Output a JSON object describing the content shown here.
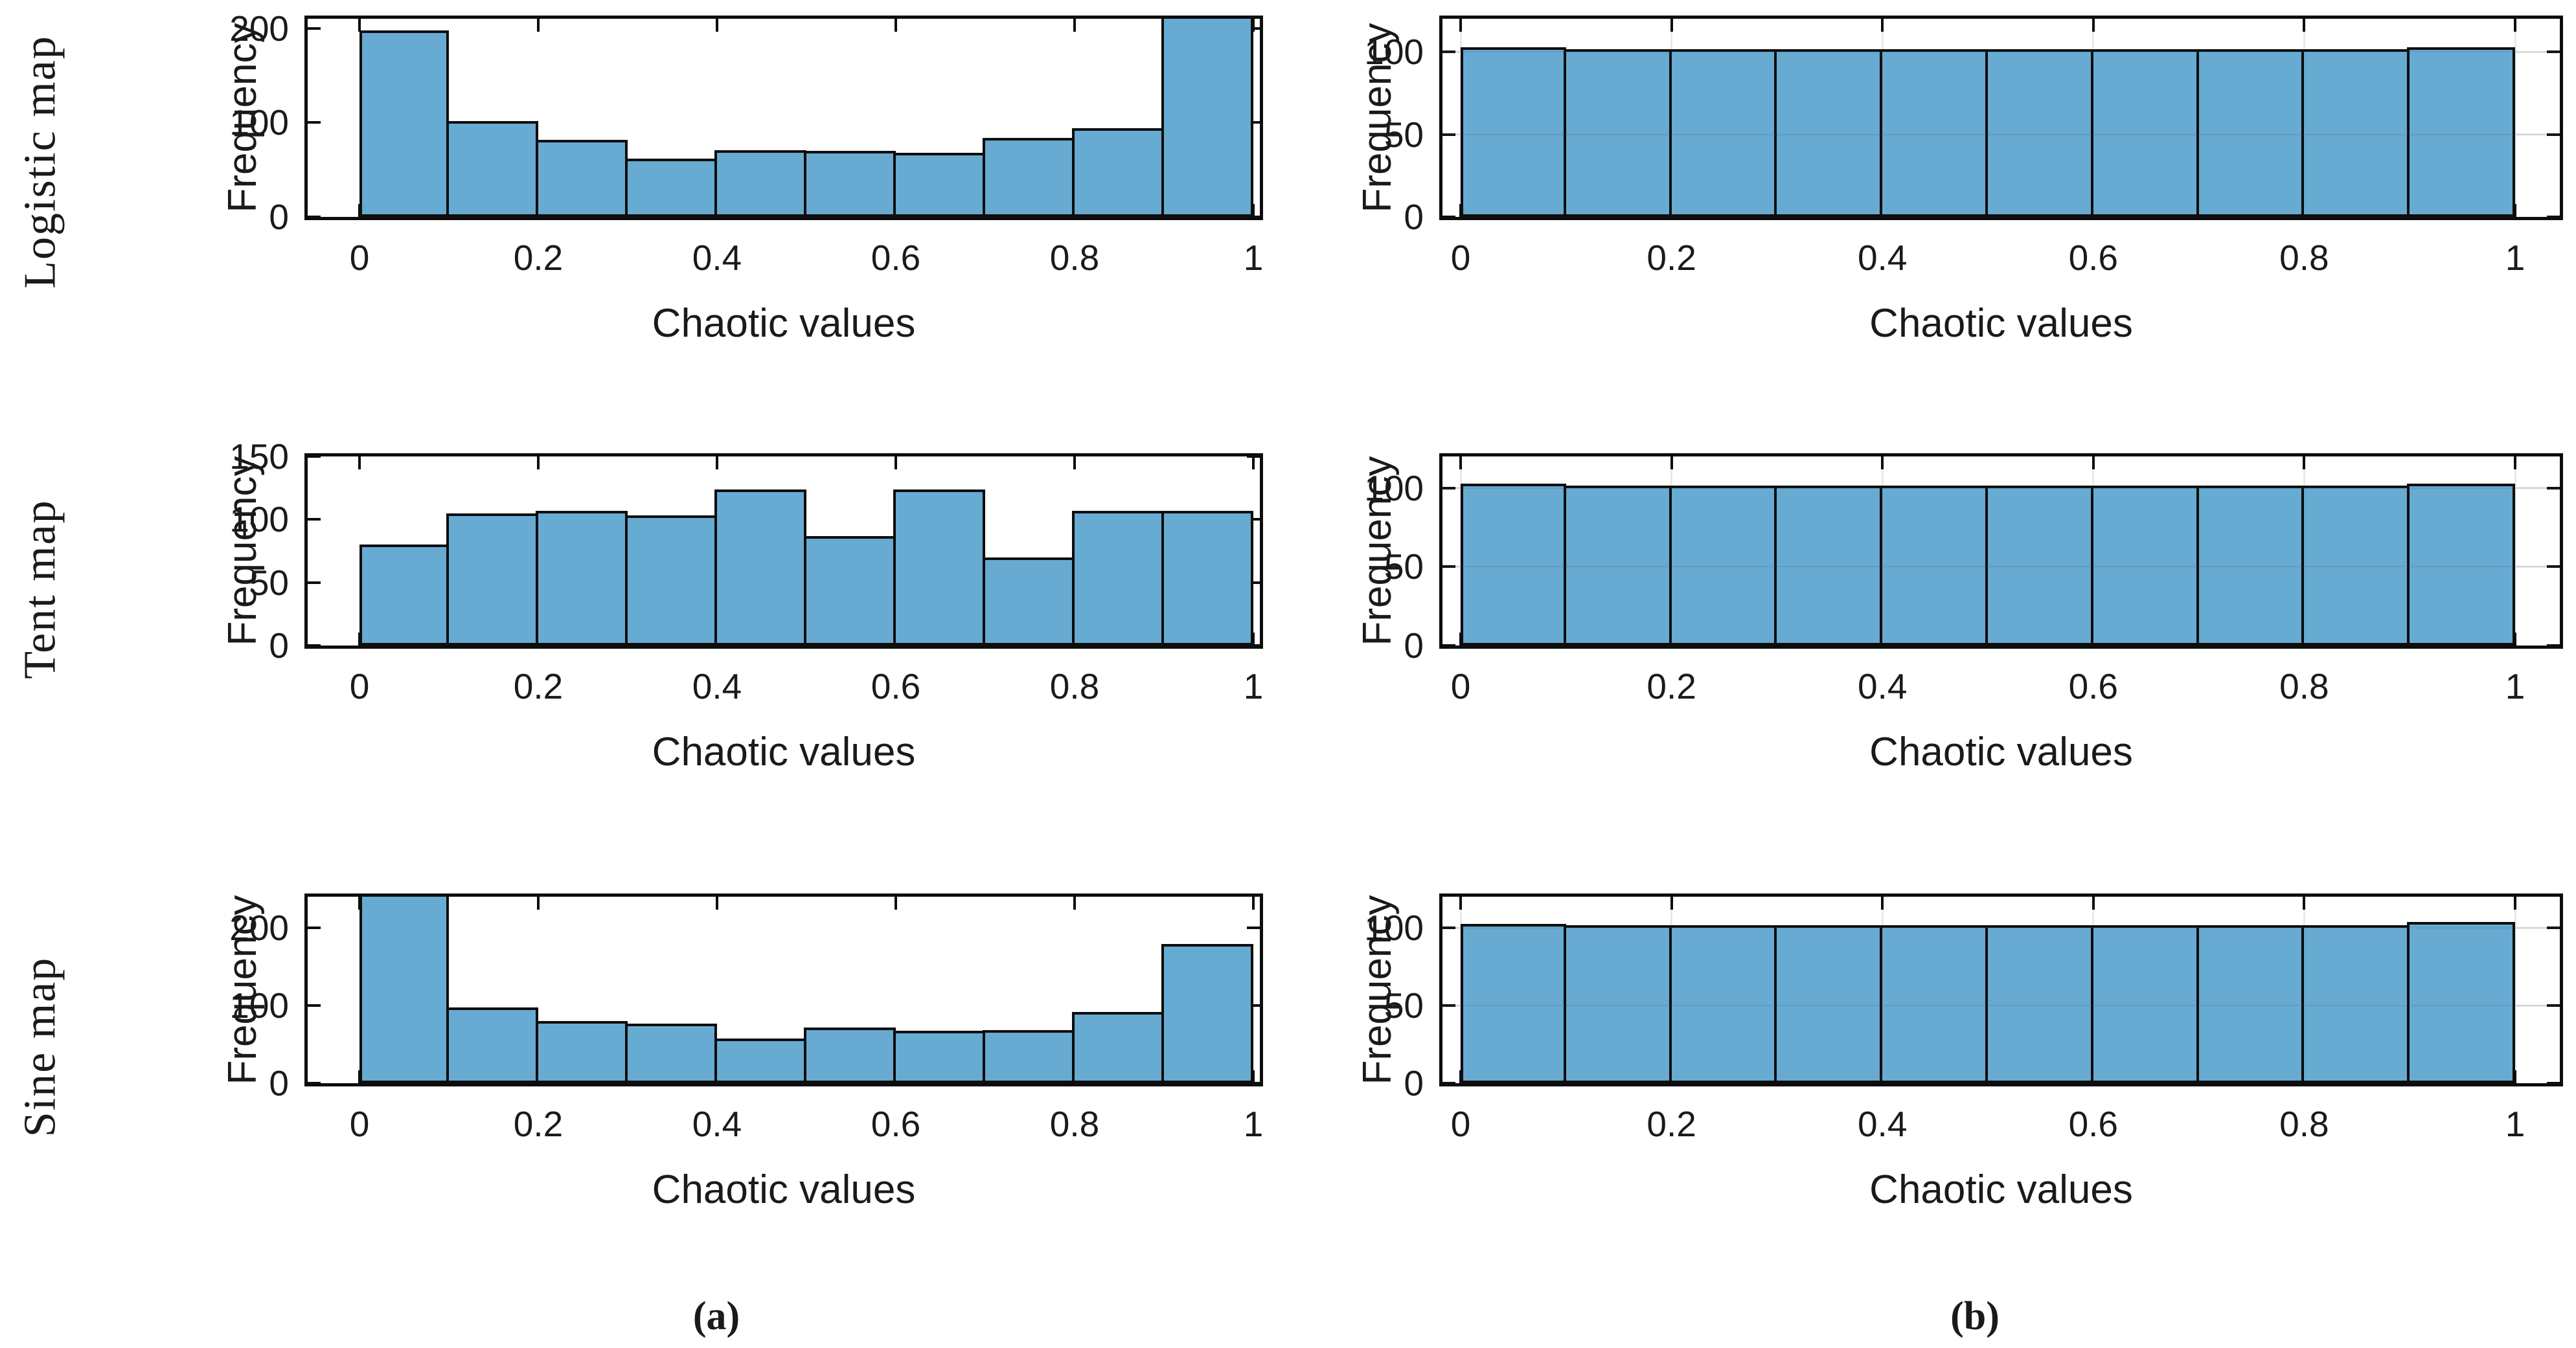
{
  "figure": {
    "colors": {
      "bar_fill": "#67aad2",
      "bar_stroke": "#0d0d0d",
      "axis": "#0d0d0d",
      "text": "#1a1a1a",
      "grid": "#e9e9e9",
      "grid_over_bars": "rgba(70,95,120,0.16)",
      "background": "#ffffff"
    },
    "captions": {
      "a": "(a)",
      "b": "(b)"
    }
  },
  "rows": [
    {
      "label": "Logistic map"
    },
    {
      "label": "Tent map"
    },
    {
      "label": "Sine map"
    }
  ],
  "chart_data": [
    {
      "type": "bar",
      "map": "Logistic map",
      "col": "a",
      "row": 0,
      "xlabel": "Chaotic values",
      "ylabel": "Frequency",
      "bin_edges": [
        0,
        0.1,
        0.2,
        0.3,
        0.4,
        0.5,
        0.6,
        0.7,
        0.8,
        0.9,
        1.0
      ],
      "values": [
        195,
        99,
        79,
        59,
        68,
        67,
        65,
        81,
        91,
        210
      ],
      "xticks": [
        0,
        0.2,
        0.4,
        0.6,
        0.8,
        1
      ],
      "xtick_labels": [
        "0",
        "0.2",
        "0.4",
        "0.6",
        "0.8",
        "1"
      ],
      "yticks": [
        0,
        100,
        200
      ],
      "ytick_labels": [
        "0",
        "100",
        "200"
      ],
      "ylim": [
        0,
        210
      ],
      "xlim": [
        -0.06,
        1.01
      ],
      "grid": false,
      "legend": "none"
    },
    {
      "type": "bar",
      "map": "Logistic map",
      "col": "b",
      "row": 0,
      "xlabel": "Chaotic values",
      "ylabel": "Frequency",
      "bin_edges": [
        0,
        0.1,
        0.2,
        0.3,
        0.4,
        0.5,
        0.6,
        0.7,
        0.8,
        0.9,
        1.0
      ],
      "values": [
        101,
        100,
        100,
        100,
        100,
        100,
        100,
        100,
        100,
        101
      ],
      "xticks": [
        0,
        0.2,
        0.4,
        0.6,
        0.8,
        1
      ],
      "xtick_labels": [
        "0",
        "0.2",
        "0.4",
        "0.6",
        "0.8",
        "1"
      ],
      "yticks": [
        0,
        50,
        100
      ],
      "ytick_labels": [
        "0",
        "50",
        "100"
      ],
      "ylim": [
        0,
        120
      ],
      "xlim": [
        -0.02,
        1.05
      ],
      "grid": true,
      "legend": "none"
    },
    {
      "type": "bar",
      "map": "Tent map",
      "col": "a",
      "row": 1,
      "xlabel": "Chaotic values",
      "ylabel": "Frequency",
      "bin_edges": [
        0,
        0.1,
        0.2,
        0.3,
        0.4,
        0.5,
        0.6,
        0.7,
        0.8,
        0.9,
        1.0
      ],
      "values": [
        78,
        103,
        105,
        101,
        122,
        85,
        122,
        68,
        105,
        105
      ],
      "xticks": [
        0,
        0.2,
        0.4,
        0.6,
        0.8,
        1
      ],
      "xtick_labels": [
        "0",
        "0.2",
        "0.4",
        "0.6",
        "0.8",
        "1"
      ],
      "yticks": [
        0,
        50,
        100,
        150
      ],
      "ytick_labels": [
        "0",
        "50",
        "100",
        "150"
      ],
      "ylim": [
        0,
        150
      ],
      "xlim": [
        -0.06,
        1.01
      ],
      "grid": false,
      "legend": "none"
    },
    {
      "type": "bar",
      "map": "Tent map",
      "col": "b",
      "row": 1,
      "xlabel": "Chaotic values",
      "ylabel": "Frequency",
      "bin_edges": [
        0,
        0.1,
        0.2,
        0.3,
        0.4,
        0.5,
        0.6,
        0.7,
        0.8,
        0.9,
        1.0
      ],
      "values": [
        101,
        100,
        100,
        100,
        100,
        100,
        100,
        100,
        100,
        101
      ],
      "xticks": [
        0,
        0.2,
        0.4,
        0.6,
        0.8,
        1
      ],
      "xtick_labels": [
        "0",
        "0.2",
        "0.4",
        "0.6",
        "0.8",
        "1"
      ],
      "yticks": [
        0,
        50,
        100
      ],
      "ytick_labels": [
        "0",
        "50",
        "100"
      ],
      "ylim": [
        0,
        120
      ],
      "xlim": [
        -0.02,
        1.05
      ],
      "grid": true,
      "legend": "none"
    },
    {
      "type": "bar",
      "map": "Sine map",
      "col": "a",
      "row": 2,
      "xlabel": "Chaotic values",
      "ylabel": "Frequency",
      "bin_edges": [
        0,
        0.1,
        0.2,
        0.3,
        0.4,
        0.5,
        0.6,
        0.7,
        0.8,
        0.9,
        1.0
      ],
      "values": [
        240,
        94,
        77,
        73,
        54,
        68,
        64,
        65,
        88,
        176
      ],
      "xticks": [
        0,
        0.2,
        0.4,
        0.6,
        0.8,
        1
      ],
      "xtick_labels": [
        "0",
        "0.2",
        "0.4",
        "0.6",
        "0.8",
        "1"
      ],
      "yticks": [
        0,
        100,
        200
      ],
      "ytick_labels": [
        "0",
        "100",
        "200"
      ],
      "ylim": [
        0,
        240
      ],
      "xlim": [
        -0.06,
        1.01
      ],
      "grid": false,
      "legend": "none"
    },
    {
      "type": "bar",
      "map": "Sine map",
      "col": "b",
      "row": 2,
      "xlabel": "Chaotic values",
      "ylabel": "Frequency",
      "bin_edges": [
        0,
        0.1,
        0.2,
        0.3,
        0.4,
        0.5,
        0.6,
        0.7,
        0.8,
        0.9,
        1.0
      ],
      "values": [
        101,
        100,
        100,
        100,
        100,
        100,
        100,
        100,
        100,
        102
      ],
      "xticks": [
        0,
        0.2,
        0.4,
        0.6,
        0.8,
        1
      ],
      "xtick_labels": [
        "0",
        "0.2",
        "0.4",
        "0.6",
        "0.8",
        "1"
      ],
      "yticks": [
        0,
        50,
        100
      ],
      "ytick_labels": [
        "0",
        "50",
        "100"
      ],
      "ylim": [
        0,
        120
      ],
      "xlim": [
        -0.02,
        1.05
      ],
      "grid": true,
      "legend": "none"
    }
  ]
}
